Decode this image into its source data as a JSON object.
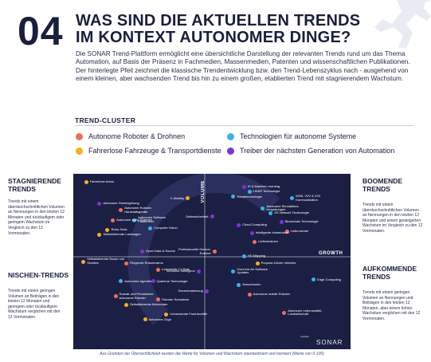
{
  "number": "04",
  "title_line1": "WAS SIND DIE AKTUELLEN TRENDS",
  "title_line2": "IM KONTEXT AUTONOMER DINGE?",
  "intro": "Die SONAR Trend-Plattform ermöglicht eine übersichtliche Darstellung der relevanten Trends rund um das Thema Automation, auf Basis der Präsenz in Fachmedien, Massenmedien, Patenten und wissenschaftlichen Publikationen. Der hinterlegte Pfeil zeichnet die klassische Trendentwicklung bzw. den Trend-Lebenszyklus nach - ausgehend von einem kleinen, aber wachsenden Trend bis hin zu einem großen, etablierten Trend mit stagnierendem Wachstum.",
  "cluster_title": "TREND-CLUSTER",
  "clusters": [
    {
      "label": "Autonome Roboter & Drohnen",
      "color": "#ef6f5e"
    },
    {
      "label": "Technologien für autonome Systeme",
      "color": "#3fb1e8"
    },
    {
      "label": "Fahrerlose Fahrzeuge & Transportdienste",
      "color": "#f5b020"
    },
    {
      "label": "Treiber der nächsten Generation von Automation",
      "color": "#7b35d6"
    }
  ],
  "quadrants": {
    "stagnating": {
      "title": "STAGNIERENDE\nTRENDS",
      "desc": "Trends mit einem überdurchschnittlichen Volumen an Nennungen in den letzten 12 Monaten und rückläufigem oder geringem Wachstum im Vergleich zu den 12 Vormonaten."
    },
    "booming": {
      "title": "BOOMENDE\nTRENDS",
      "desc": "Trends mit einem überdurchschnittlichen Volumen an Nennungen in den letzten 12 Monaten und einem gesteigerten Wachstum im Vergleich zu den 12 Vormonaten."
    },
    "niche": {
      "title": "NISCHEN-TRENDS",
      "desc": "Trends mit einem geringen Volumen an Beiträgen in den letzten 12 Monaten und geringem oder rückläufigem Wachstum verglichen mit den 12 Vormonaten."
    },
    "emerging": {
      "title": "AUFKOMMENDE\nTRENDS",
      "desc": "Trends mit einem geringen Volumen an Nennungen und Beiträgen in den letzten 12 Monaten, aber einem hohen Wachstum verglichen mit den 12 Vormonaten."
    }
  },
  "axis_volume": "VOLUME",
  "axis_growth": "GROWTH",
  "brand": "SONAR",
  "brand_small": "scalable",
  "footnote": "Aus Gründen der Übersichtlichkeit wurden die Werte für Volumen und Wachstum standardisiert und normiert (Werte von 0-100)",
  "chart_data": {
    "type": "scatter",
    "x_axis": "GROWTH",
    "y_axis": "VOLUME",
    "points": [
      {
        "label": "Fahrerlose Autos",
        "cluster": "Fahrerlose Fahrzeuge & Transportdienste",
        "growth": 3,
        "volume": 98
      },
      {
        "label": "KI & Machine Learning",
        "cluster": "Treiber der nächsten Generation von Automation",
        "growth": 62,
        "volume": 95
      },
      {
        "label": "LiDAR Technologie",
        "cluster": "Technologien für autonome Systeme",
        "growth": 64,
        "volume": 92
      },
      {
        "label": "Radartechnologie",
        "cluster": "Technologien für autonome Systeme",
        "growth": 58,
        "volume": 89
      },
      {
        "label": "M2M, V2V & V2X Kommunikation",
        "cluster": "Technologien für autonome Systeme",
        "growth": 80,
        "volume": 89
      },
      {
        "label": "C-Mobility",
        "cluster": "Fahrerlose Fahrzeuge & Transportdienste",
        "growth": 41,
        "volume": 88
      },
      {
        "label": "Autonome Gesetzgebung",
        "cluster": "Treiber der nächsten Generation von Automation",
        "growth": 8,
        "volume": 85
      },
      {
        "label": "Autonome Simulations-Umgebungen",
        "cluster": "Technologien für autonome Systeme",
        "growth": 69,
        "volume": 83
      },
      {
        "label": "Autonome Roboter-Haushaltsgeräte",
        "cluster": "Autonome Roboter & Drohnen",
        "growth": 16,
        "volume": 82
      },
      {
        "label": "5G Network Technologie",
        "cluster": "Technologien für autonome Systeme",
        "growth": 72,
        "volume": 79
      },
      {
        "label": "Onlinesicherheit",
        "cluster": "Treiber der nächsten Generation von Automation",
        "growth": 50,
        "volume": 77
      },
      {
        "label": "Autonome Software Plattformen",
        "cluster": "Technologien für autonome Systeme",
        "growth": 21,
        "volume": 76
      },
      {
        "label": "Autonome zivile Drohnen",
        "cluster": "Autonome Roboter & Drohnen",
        "growth": 13,
        "volume": 75
      },
      {
        "label": "Blockchain Technologie",
        "cluster": "Treiber der nächsten Generation von Automation",
        "growth": 76,
        "volume": 74
      },
      {
        "label": "Robo-Taxis",
        "cluster": "Fahrerlose Fahrzeuge & Transportdienste",
        "growth": 11,
        "volume": 69
      },
      {
        "label": "Computer Vision",
        "cluster": "Technologien für autonome Systeme",
        "growth": 27,
        "volume": 70
      },
      {
        "label": "Cloud Computing",
        "cluster": "Treiber der nächsten Generation von Automation",
        "growth": 60,
        "volume": 72
      },
      {
        "label": "Lieferroboter",
        "cluster": "Autonome Roboter & Drohnen",
        "growth": 78,
        "volume": 68
      },
      {
        "label": "Intelligente Infrastruktur",
        "cluster": "Treiber der nächsten Generation von Automation",
        "growth": 65,
        "volume": 67
      },
      {
        "label": "Selbstfahrende Lastwagen",
        "cluster": "Fahrerlose Fahrzeuge & Transportdienste",
        "growth": 8,
        "volume": 66
      },
      {
        "label": "Lieferdrohnen",
        "cluster": "Autonome Roboter & Drohnen",
        "growth": 66,
        "volume": 62
      },
      {
        "label": "Open Data & Source",
        "cluster": "Treiber der nächsten Generation von Automation",
        "growth": 24,
        "volume": 56
      },
      {
        "label": "Professionelle Service-Roboter",
        "cluster": "Autonome Roboter & Drohnen",
        "growth": 51,
        "volume": 57
      },
      {
        "label": "HD Mapping",
        "cluster": "Technologien für autonome Systeme",
        "growth": 62,
        "volume": 53
      },
      {
        "label": "Selbstfahrende Busse und Shuttles",
        "cluster": "Fahrerlose Fahrzeuge & Transportdienste",
        "growth": 2,
        "volume": 51
      },
      {
        "label": "Fliegende Roboterarms",
        "cluster": "Autonome Roboter & Drohnen",
        "growth": 18,
        "volume": 49
      },
      {
        "label": "Purpose-Driven Vehicles",
        "cluster": "Fahrerlose Fahrzeuge & Transportdienste",
        "growth": 67,
        "volume": 49
      },
      {
        "label": "Industrielle Co Bots",
        "cluster": "Autonome Roboter & Drohnen",
        "growth": 30,
        "volume": 45
      },
      {
        "label": "Schwarm-Intelligenz",
        "cluster": "Treiber der nächsten Generation von Automation",
        "growth": 45,
        "volume": 44
      },
      {
        "label": "Over-the-Air Software Updates",
        "cluster": "Technologien für autonome Systeme",
        "growth": 58,
        "volume": 45
      },
      {
        "label": "Autonome Agenten",
        "cluster": "Technologien für autonome Systeme",
        "growth": 16,
        "volume": 38
      },
      {
        "label": "Quantum Technologie",
        "cluster": "Treiber der nächsten Generation von Automation",
        "growth": 28,
        "volume": 38
      },
      {
        "label": "Edge Computing",
        "cluster": "Technologien für autonome Systeme",
        "growth": 88,
        "volume": 39
      },
      {
        "label": "Sensorfusion",
        "cluster": "Technologien für autonome Systeme",
        "growth": 60,
        "volume": 36
      },
      {
        "label": "Dezentralisierung",
        "cluster": "Treiber der nächsten Generation von Automation",
        "growth": 48,
        "volume": 32
      },
      {
        "label": "Soziale und Persönliche Autonome Roboter",
        "cluster": "Autonome Roboter & Drohnen",
        "growth": 14,
        "volume": 30
      },
      {
        "label": "Autonome mobile Roboter",
        "cluster": "Autonome Roboter & Drohnen",
        "growth": 64,
        "volume": 30
      },
      {
        "label": "Roboter Schwärme",
        "cluster": "Autonome Roboter & Drohnen",
        "growth": 30,
        "volume": 27
      },
      {
        "label": "Selbstfahrende Motorräder",
        "cluster": "Fahrerlose Fahrzeuge & Transportdienste",
        "growth": 18,
        "volume": 24
      },
      {
        "label": "Autonome Lebensmittel-Landwirtschaft",
        "cluster": "Autonome Roboter & Drohnen",
        "growth": 77,
        "volume": 20
      },
      {
        "label": "Unbemannte Frachtschiffe",
        "cluster": "Fahrerlose Fahrzeuge & Transportdienste",
        "growth": 33,
        "volume": 18
      },
      {
        "label": "Autonome Züge",
        "cluster": "Fahrerlose Fahrzeuge & Transportdienste",
        "growth": 25,
        "volume": 15
      }
    ]
  }
}
